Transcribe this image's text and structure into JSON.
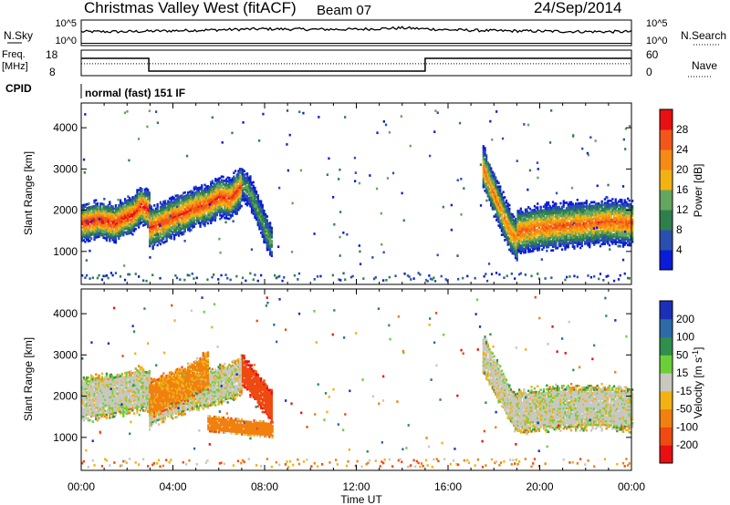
{
  "header": {
    "title": "Christmas Valley West (fitACF)",
    "beam": "Beam 07",
    "date": "24/Sep/2014"
  },
  "noise_panel": {
    "left_label": "N.Sky",
    "right_label": "N.Search",
    "left_ticks": [
      "10^5",
      "10^0"
    ],
    "right_ticks": [
      "10^5",
      "10^0"
    ]
  },
  "freq_panel": {
    "left_label_1": "Freq.",
    "left_label_2": "[MHz]",
    "right_label": "Nave",
    "left_ticks": [
      "18",
      "8"
    ],
    "right_ticks": [
      "60",
      "0"
    ]
  },
  "cpid": {
    "label": "CPID",
    "text": "normal (fast) 151 IF"
  },
  "x_axis": {
    "label": "Time UT",
    "ticks": [
      "00:00",
      "04:00",
      "08:00",
      "12:00",
      "16:00",
      "20:00",
      "00:00"
    ]
  },
  "colors": {
    "power": [
      "#0a1cd8",
      "#2a4fb0",
      "#2f7f4c",
      "#63a65f",
      "#f2b213",
      "#f58a15",
      "#f3561a",
      "#e81010"
    ],
    "velocity": [
      "#1b2fb7",
      "#2d6aa8",
      "#2f8f4c",
      "#6ccf39",
      "#c8c8c0",
      "#f2b213",
      "#f08010",
      "#ef4a12",
      "#e81010"
    ]
  },
  "chart_data": [
    {
      "type": "line",
      "panel": "noise",
      "series": [
        {
          "name": "N.Sky",
          "x": [
            0,
            2,
            4,
            6,
            8,
            10,
            12,
            14,
            16,
            18,
            20,
            22,
            24
          ],
          "y": [
            3,
            3,
            3.2,
            3.4,
            3.6,
            3.5,
            3.5,
            3.8,
            3.4,
            3.2,
            3.1,
            3.0,
            3.0
          ]
        },
        {
          "name": "N.Search",
          "x": [
            0,
            4,
            8,
            12,
            16,
            20,
            24
          ],
          "y": [
            0.5,
            0.5,
            0.5,
            0.5,
            0.5,
            0.5,
            0.5
          ]
        }
      ],
      "xlim": [
        0,
        24
      ]
    },
    {
      "type": "line",
      "panel": "frequency",
      "series": [
        {
          "x": [
            0,
            2.95,
            2.95,
            15.0,
            15.0,
            24
          ],
          "y": [
            14.8,
            14.8,
            9.8,
            9.8,
            14.8,
            14.8
          ]
        },
        {
          "name": "Nave",
          "x": [
            0,
            24
          ],
          "y": [
            28,
            28
          ]
        }
      ],
      "xlim": [
        0,
        24
      ],
      "ylim_left": [
        8,
        18
      ],
      "ylim_right": [
        0,
        60
      ]
    },
    {
      "type": "heatmap",
      "panel": "power",
      "ylabel": "Slant Range [km]",
      "colorbar_label": "Power [dB]",
      "colorbar_ticks": [
        4,
        8,
        12,
        16,
        20,
        24,
        28
      ],
      "clim": [
        0,
        32
      ],
      "yticks": [
        1000,
        2000,
        3000,
        4000
      ],
      "ylim": [
        200,
        4600
      ],
      "xlim": [
        0,
        24
      ],
      "regions": [
        {
          "t0": 0.0,
          "t1": 2.95,
          "center": [
            1650,
            1700,
            1750,
            1700,
            1650,
            1800,
            1850,
            2100,
            1950
          ],
          "halfwidth": 350,
          "peak": 30
        },
        {
          "t0": 2.95,
          "t1": 7.0,
          "center": [
            1550,
            1650,
            1800,
            1900,
            2050,
            2100,
            2300,
            2250,
            2600
          ],
          "halfwidth": 380,
          "peak": 28
        },
        {
          "t0": 7.0,
          "t1": 8.3,
          "center": [
            2600,
            2500,
            2300,
            2000,
            1700,
            1400,
            1150
          ],
          "halfwidth": 300,
          "peak": 14
        },
        {
          "t0": 17.5,
          "t1": 19.0,
          "center": [
            3000,
            2600,
            2200,
            1800,
            1450,
            1200
          ],
          "halfwidth": 400,
          "peak": 24
        },
        {
          "t0": 19.0,
          "t1": 24.0,
          "center": [
            1450,
            1550,
            1600,
            1650,
            1700,
            1650
          ],
          "halfwidth": 420,
          "peak": 26
        }
      ]
    },
    {
      "type": "heatmap",
      "panel": "velocity",
      "ylabel": "Slant Range [km]",
      "colorbar_label": "Velocity [m s^-1]",
      "colorbar_ticks": [
        200,
        100,
        50,
        15,
        -15,
        -50,
        -100,
        -200
      ],
      "clim": [
        -250,
        250
      ],
      "yticks": [
        1000,
        2000,
        3000,
        4000
      ],
      "ylim": [
        200,
        4600
      ],
      "xlim": [
        0,
        24
      ],
      "regions": [
        {
          "t0": 0.0,
          "t1": 2.95,
          "center": [
            1900,
            1900,
            1950,
            1950,
            2000,
            2050,
            2100,
            2150,
            2100
          ],
          "halfwidth": 400,
          "value": 0
        },
        {
          "t0": 2.95,
          "t1": 7.0,
          "center": [
            1700,
            1800,
            1900,
            2000,
            2100,
            2150,
            2250,
            2300,
            2500
          ],
          "halfwidth": 350,
          "value": 0
        },
        {
          "t0": 2.95,
          "t1": 5.5,
          "center": [
            1900,
            2200,
            2600
          ],
          "halfwidth": 350,
          "value": -60
        },
        {
          "t0": 5.5,
          "t1": 8.3,
          "center": [
            1300,
            1250,
            1200,
            1150
          ],
          "halfwidth": 150,
          "value": -70
        },
        {
          "t0": 7.0,
          "t1": 8.3,
          "center": [
            2600,
            2300,
            2000,
            1700
          ],
          "halfwidth": 300,
          "value": -180
        },
        {
          "t0": 17.5,
          "t1": 19.0,
          "center": [
            3000,
            2600,
            2200,
            1800,
            1500
          ],
          "halfwidth": 350,
          "value": 0
        },
        {
          "t0": 19.0,
          "t1": 24.0,
          "center": [
            1600,
            1650,
            1700,
            1700,
            1700,
            1650
          ],
          "halfwidth": 400,
          "value": 0
        }
      ]
    }
  ]
}
